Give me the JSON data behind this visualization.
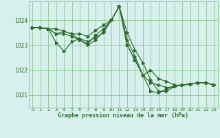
{
  "title": "Graphe pression niveau de la mer (hPa)",
  "bg_color": "#d7f0ee",
  "grid_color": "#7abf7a",
  "line_color": "#2d6a2d",
  "spine_color": "#7abf7a",
  "xlim": [
    -0.5,
    23.5
  ],
  "ylim": [
    1020.5,
    1024.75
  ],
  "yticks": [
    1021,
    1022,
    1023,
    1024
  ],
  "xticks": [
    0,
    1,
    2,
    3,
    4,
    5,
    6,
    7,
    8,
    9,
    10,
    11,
    12,
    13,
    14,
    15,
    16,
    17,
    18,
    19,
    20,
    21,
    22,
    23
  ],
  "series": [
    [
      1023.7,
      1023.7,
      1023.65,
      1023.65,
      1023.55,
      1023.45,
      1023.45,
      1023.35,
      1023.6,
      1023.8,
      1024.0,
      1024.55,
      1023.0,
      1022.4,
      1021.8,
      1021.5,
      1021.4,
      1021.3,
      1021.35,
      1021.4,
      1021.45,
      1021.5,
      1021.5,
      1021.4
    ],
    [
      1023.7,
      1023.7,
      1023.65,
      1023.1,
      1022.75,
      1023.15,
      1023.25,
      1023.15,
      1023.3,
      1023.5,
      1024.0,
      1024.55,
      1023.0,
      1022.4,
      1021.8,
      1022.0,
      1021.65,
      1021.55,
      1021.4,
      1021.4,
      1021.45,
      1021.5,
      1021.5,
      1021.4
    ],
    [
      1023.7,
      1023.7,
      1023.65,
      1023.45,
      1023.55,
      1023.45,
      1023.2,
      1023.0,
      1023.2,
      1023.55,
      1024.0,
      1024.55,
      1023.2,
      1022.55,
      1021.8,
      1021.15,
      1021.1,
      1021.25,
      1021.35,
      1021.4,
      1021.45,
      1021.5,
      1021.5,
      1021.4
    ],
    [
      1023.7,
      1023.7,
      1023.65,
      1023.45,
      1023.45,
      1023.35,
      1023.2,
      1023.05,
      1023.4,
      1023.65,
      1024.0,
      1024.55,
      1023.5,
      1022.8,
      1022.3,
      1021.6,
      1021.15,
      1021.15,
      1021.35,
      1021.4,
      1021.45,
      1021.5,
      1021.5,
      1021.4
    ]
  ]
}
